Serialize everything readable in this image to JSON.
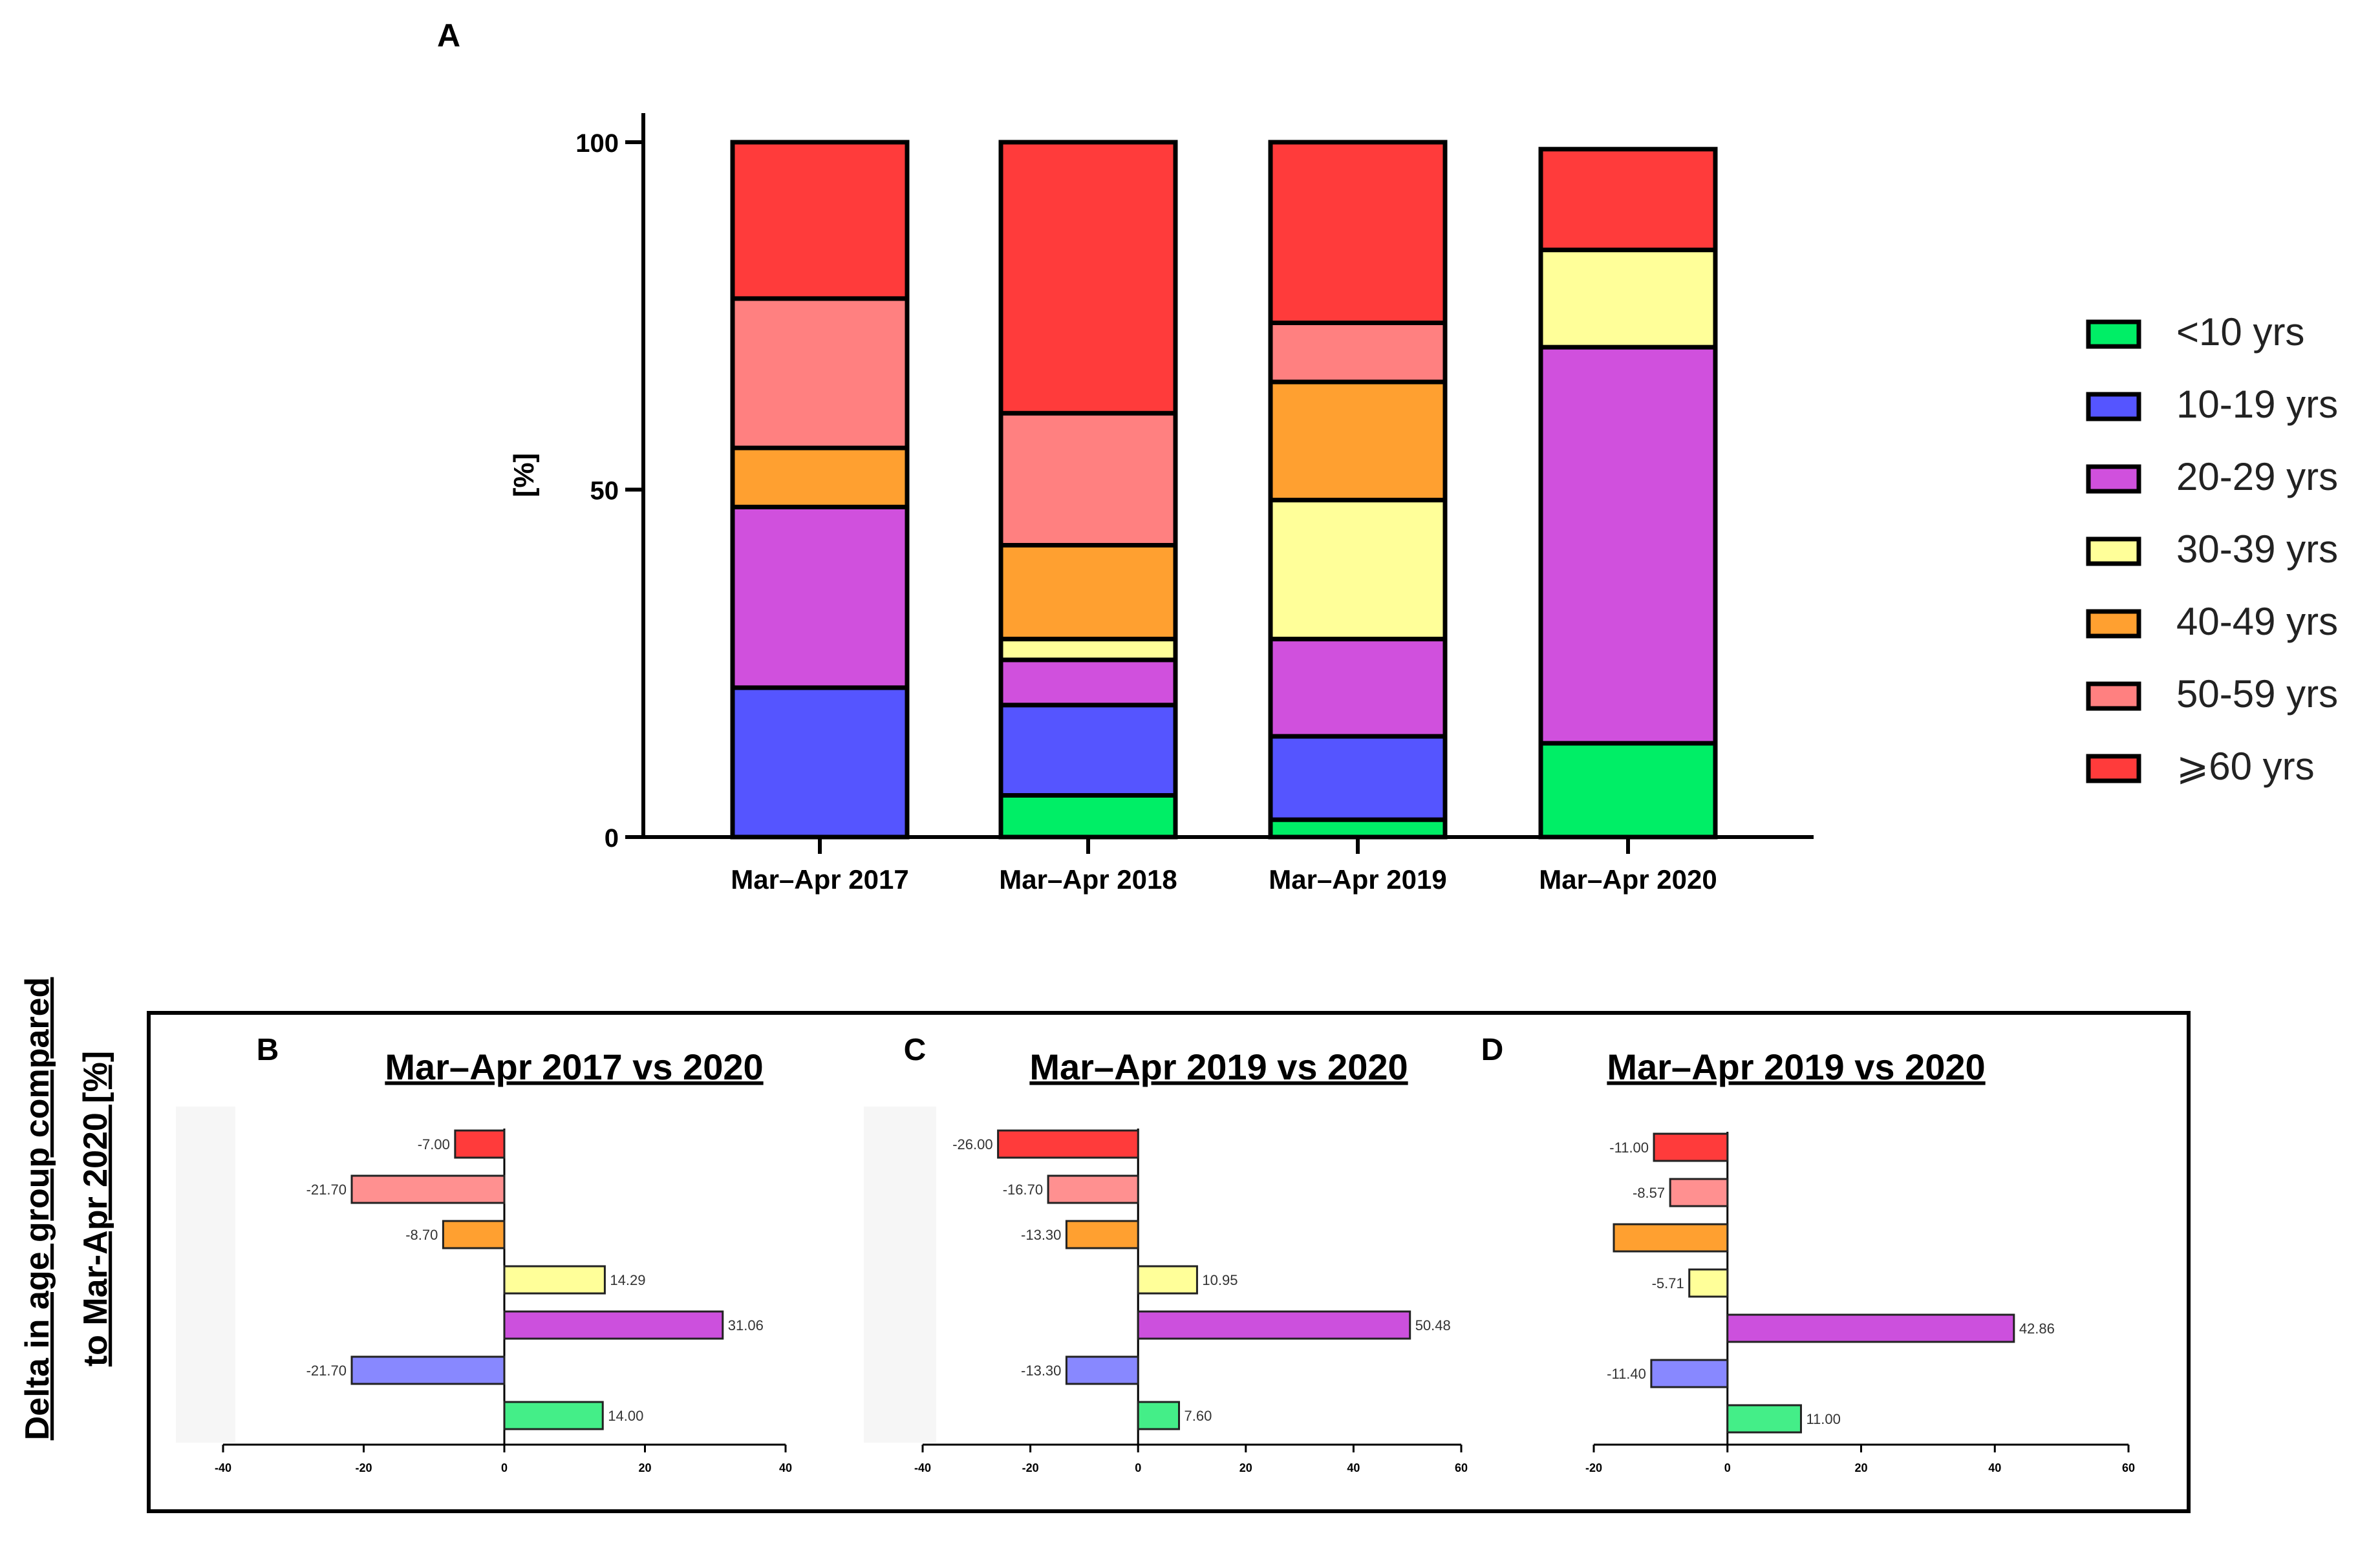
{
  "colors": {
    "lt10": "#00ee66",
    "y10_19": "#5555ff",
    "y20_29": "#d050dd",
    "y30_39": "#ffff99",
    "y40_49": "#ffa030",
    "y50_59": "#ff8080",
    "y60plus": "#ff3b3b"
  },
  "delta_colors": {
    "lt10": "#44ee88",
    "y10_19": "#8888ff",
    "y20_29": "#cc50dd",
    "y30_39": "#ffff99",
    "y40_49": "#ffa030",
    "y50_59": "#ff9090",
    "y60plus": "#ff3b3b"
  },
  "chart_data": [
    {
      "panel": "A",
      "type": "bar",
      "stacked": true,
      "ylabel": "[%]",
      "ylim": [
        0,
        100
      ],
      "yticks": [
        "0",
        "50",
        "100"
      ],
      "categories": [
        "Mar–Apr 2017",
        "Mar–Apr 2018",
        "Mar–Apr 2019",
        "Mar–Apr 2020"
      ],
      "series": [
        {
          "key": "lt10",
          "name": "<10 yrs",
          "values": [
            0,
            6,
            2.5,
            13.5
          ]
        },
        {
          "key": "y10_19",
          "name": "10-19 yrs",
          "values": [
            21.5,
            13,
            12,
            0
          ]
        },
        {
          "key": "y20_29",
          "name": "20-29 yrs",
          "values": [
            26,
            6.5,
            14,
            57
          ]
        },
        {
          "key": "y30_39",
          "name": "30-39 yrs",
          "values": [
            0,
            3,
            20,
            14
          ]
        },
        {
          "key": "y40_49",
          "name": "40-49 yrs",
          "values": [
            8.5,
            13.5,
            17,
            0
          ]
        },
        {
          "key": "y50_59",
          "name": "50-59 yrs",
          "values": [
            21.5,
            19,
            8.5,
            0
          ]
        },
        {
          "key": "y60plus",
          "name": "⩾60 yrs",
          "values": [
            22.5,
            39,
            26,
            14.5
          ]
        }
      ],
      "legend_position": "right"
    },
    {
      "panel": "B",
      "type": "bar",
      "orientation": "horizontal",
      "title": "Mar–Apr 2017 vs 2020",
      "xlim": [
        -40,
        40
      ],
      "xticks": [
        "-40",
        "-20",
        "0",
        "20",
        "40"
      ],
      "bars": [
        {
          "key": "y60plus",
          "value": -7.0,
          "label": "-7.00"
        },
        {
          "key": "y50_59",
          "value": -21.7,
          "label": "-21.70"
        },
        {
          "key": "y40_49",
          "value": -8.7,
          "label": "-8.70"
        },
        {
          "key": "y30_39",
          "value": 14.29,
          "label": "14.29"
        },
        {
          "key": "y20_29",
          "value": 31.06,
          "label": "31.06"
        },
        {
          "key": "y10_19",
          "value": -21.7,
          "label": "-21.70"
        },
        {
          "key": "lt10",
          "value": 14.0,
          "label": "14.00"
        }
      ]
    },
    {
      "panel": "C",
      "type": "bar",
      "orientation": "horizontal",
      "title": "Mar–Apr 2019 vs 2020",
      "xlim": [
        -40,
        60
      ],
      "xticks": [
        "-40",
        "-20",
        "0",
        "20",
        "40",
        "60"
      ],
      "bars": [
        {
          "key": "y60plus",
          "value": -26.0,
          "label": "-26.00"
        },
        {
          "key": "y50_59",
          "value": -16.7,
          "label": "-16.70"
        },
        {
          "key": "y40_49",
          "value": -13.3,
          "label": "-13.30"
        },
        {
          "key": "y30_39",
          "value": 10.95,
          "label": "10.95"
        },
        {
          "key": "y20_29",
          "value": 50.48,
          "label": "50.48"
        },
        {
          "key": "y10_19",
          "value": -13.3,
          "label": "-13.30"
        },
        {
          "key": "lt10",
          "value": 7.6,
          "label": "7.60"
        }
      ]
    },
    {
      "panel": "D",
      "type": "bar",
      "orientation": "horizontal",
      "title": "Mar–Apr 2019 vs 2020",
      "xlim": [
        -20,
        60
      ],
      "xticks": [
        "-20",
        "0",
        "20",
        "40",
        "60"
      ],
      "bars": [
        {
          "key": "y60plus",
          "value": -11.0,
          "label": "-11.00"
        },
        {
          "key": "y50_59",
          "value": -8.57,
          "label": "-8.57"
        },
        {
          "key": "y40_49",
          "value": -17.0,
          "label": ""
        },
        {
          "key": "y30_39",
          "value": -5.71,
          "label": "-5.71"
        },
        {
          "key": "y20_29",
          "value": 42.86,
          "label": "42.86"
        },
        {
          "key": "y10_19",
          "value": -11.4,
          "label": "-11.40"
        },
        {
          "key": "lt10",
          "value": 11.0,
          "label": "11.00"
        }
      ]
    }
  ],
  "panel_letters": {
    "a": "A",
    "b": "B",
    "c": "C",
    "d": "D"
  },
  "delta_ylabel": {
    "line1": "Delta in age group compared",
    "line2": "to Mar-Apr 2020 [%]"
  }
}
